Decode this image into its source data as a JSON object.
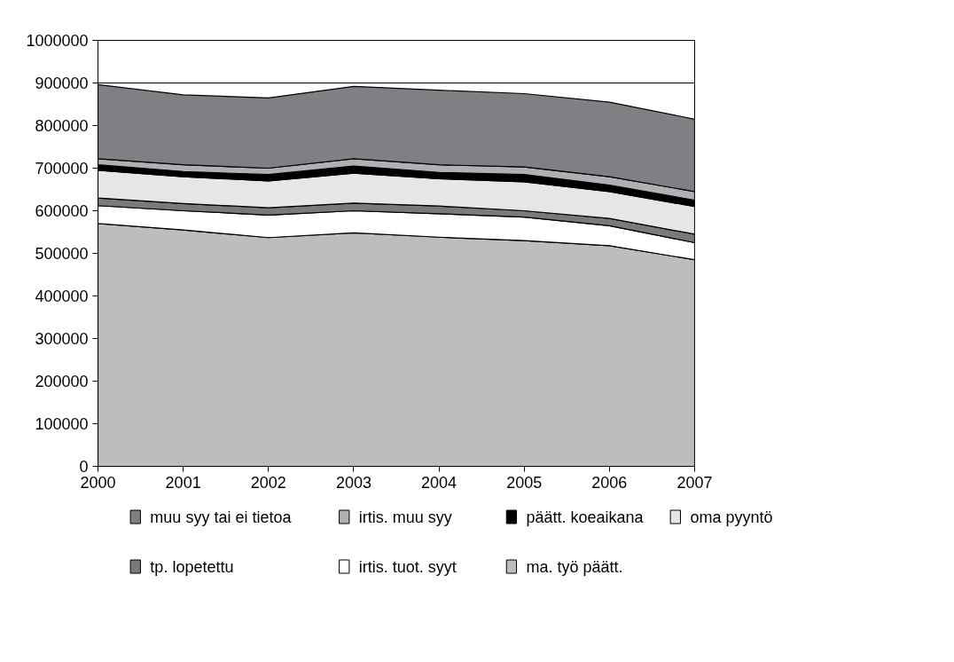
{
  "chart_data": {
    "type": "area",
    "stacked": true,
    "x": [
      2000,
      2001,
      2002,
      2003,
      2004,
      2005,
      2006,
      2007
    ],
    "xticks": [
      2000,
      2001,
      2002,
      2003,
      2004,
      2005,
      2006,
      2007
    ],
    "xlim": [
      2000,
      2007
    ],
    "ylim": [
      0,
      1000000
    ],
    "yticks": [
      0,
      100000,
      200000,
      300000,
      400000,
      500000,
      600000,
      700000,
      800000,
      900000,
      1000000
    ],
    "grid": "y",
    "legend": "bottom",
    "series": [
      {
        "name": "ma. työ päätt.",
        "color": "#bdbdbd",
        "values": [
          570000,
          555000,
          537000,
          548000,
          538000,
          530000,
          518000,
          485000
        ]
      },
      {
        "name": "irtis. tuot. syyt",
        "color": "#ffffff",
        "values": [
          42000,
          45000,
          53000,
          52000,
          55000,
          55000,
          47000,
          40000
        ]
      },
      {
        "name": "tp. lopetettu",
        "color": "#7a7a7a",
        "values": [
          18000,
          17000,
          17000,
          18000,
          18000,
          15000,
          17000,
          20000
        ]
      },
      {
        "name": "oma pyyntö",
        "color": "#e6e6e6",
        "values": [
          65000,
          63000,
          63000,
          70000,
          64000,
          68000,
          63000,
          65000
        ]
      },
      {
        "name": "päätt. koeaikana",
        "color": "#000000",
        "values": [
          13000,
          12000,
          15000,
          17000,
          15000,
          17000,
          15000,
          15000
        ]
      },
      {
        "name": "irtis. muu syy",
        "color": "#b0b0b4",
        "values": [
          14000,
          16000,
          15000,
          17000,
          18000,
          18000,
          20000,
          20000
        ]
      },
      {
        "name": "muu syy tai ei tietoa",
        "color": "#808084",
        "values": [
          174000,
          164000,
          165000,
          170000,
          175000,
          172000,
          175000,
          170000
        ]
      }
    ]
  }
}
